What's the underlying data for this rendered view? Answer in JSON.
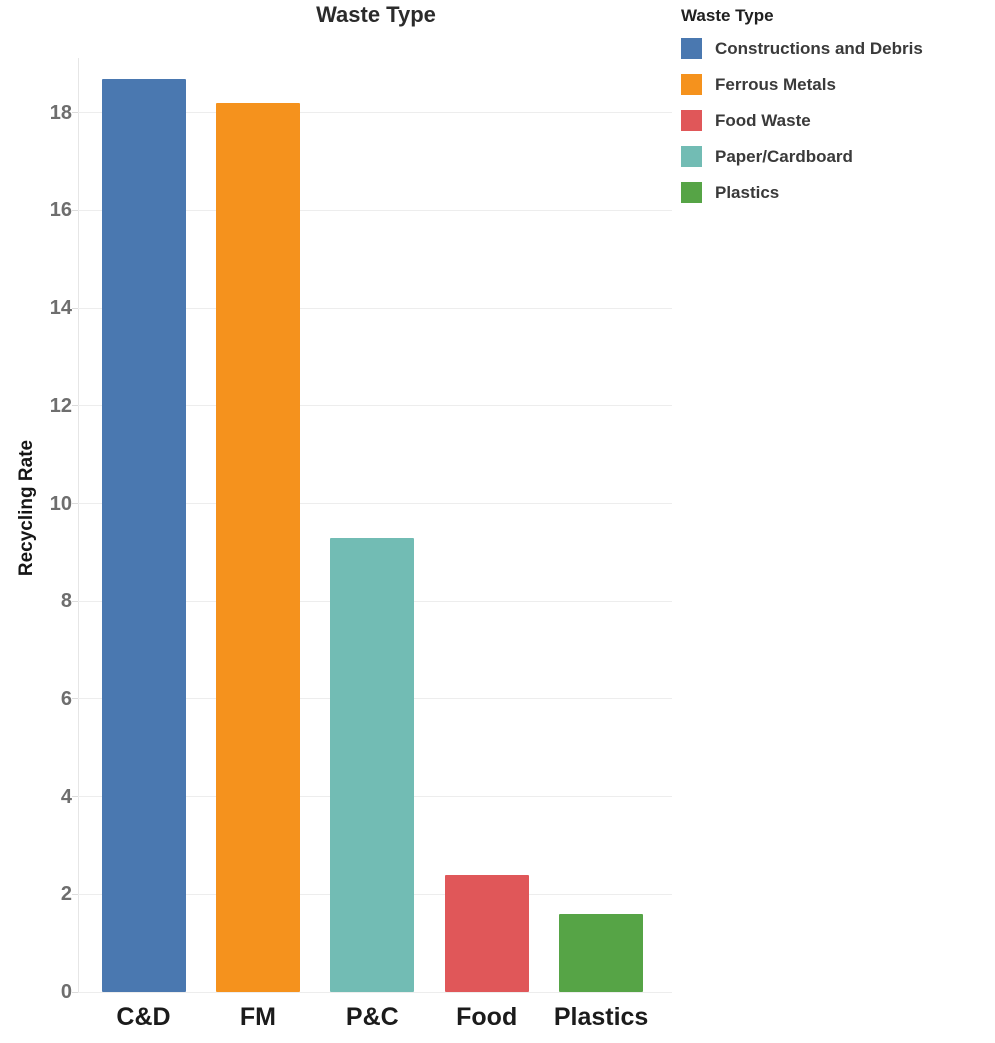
{
  "chart_data": {
    "type": "bar",
    "title": "Waste Type",
    "xlabel": "",
    "ylabel": "Recycling Rate",
    "categories": [
      "C&D",
      "FM",
      "P&C",
      "Food",
      "Plastics"
    ],
    "values": [
      18.7,
      18.2,
      9.3,
      2.4,
      1.6
    ],
    "bar_colors": [
      "#4a78b0",
      "#f5921d",
      "#72bcb4",
      "#e05759",
      "#56a446"
    ],
    "yticks": [
      0,
      2,
      4,
      6,
      8,
      10,
      12,
      14,
      16,
      18
    ],
    "ylim": [
      0,
      19.2
    ],
    "grid": true,
    "legend_position": "right"
  },
  "legend": {
    "title": "Waste Type",
    "items": [
      {
        "label": "Constructions and Debris",
        "color": "#4a78b0"
      },
      {
        "label": "Ferrous Metals",
        "color": "#f5921d"
      },
      {
        "label": "Food Waste",
        "color": "#e05759"
      },
      {
        "label": "Paper/Cardboard",
        "color": "#72bcb4"
      },
      {
        "label": "Plastics",
        "color": "#56a446"
      }
    ]
  },
  "colors": {
    "background": "#ffffff",
    "gridline": "#ededed",
    "axis_line": "#e6e6e6",
    "tick_label": "#6e6e6e",
    "title_text": "#2b2b2b",
    "x_label_text": "#1b1b1b"
  }
}
